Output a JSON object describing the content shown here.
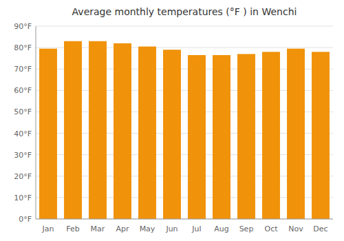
{
  "chart_data": {
    "type": "bar",
    "title": "Average monthly temperatures (°F ) in Wenchi",
    "categories": [
      "Jan",
      "Feb",
      "Mar",
      "Apr",
      "May",
      "Jun",
      "Jul",
      "Aug",
      "Sep",
      "Oct",
      "Nov",
      "Dec"
    ],
    "values": [
      79.5,
      83.0,
      83.0,
      82.0,
      80.5,
      79.0,
      76.5,
      76.5,
      77.0,
      78.0,
      79.5,
      78.0
    ],
    "color": "#F0920A",
    "ylim": [
      0,
      90
    ],
    "yticks": [
      {
        "value": 0,
        "label": "0°F"
      },
      {
        "value": 10,
        "label": "10°F"
      },
      {
        "value": 20,
        "label": "20°F"
      },
      {
        "value": 30,
        "label": "30°F"
      },
      {
        "value": 40,
        "label": "40°F"
      },
      {
        "value": 50,
        "label": "50°F"
      },
      {
        "value": 60,
        "label": "60°F"
      },
      {
        "value": 70,
        "label": "70°F"
      },
      {
        "value": 80,
        "label": "80°F"
      },
      {
        "value": 90,
        "label": "90°F"
      }
    ],
    "grid": true
  }
}
